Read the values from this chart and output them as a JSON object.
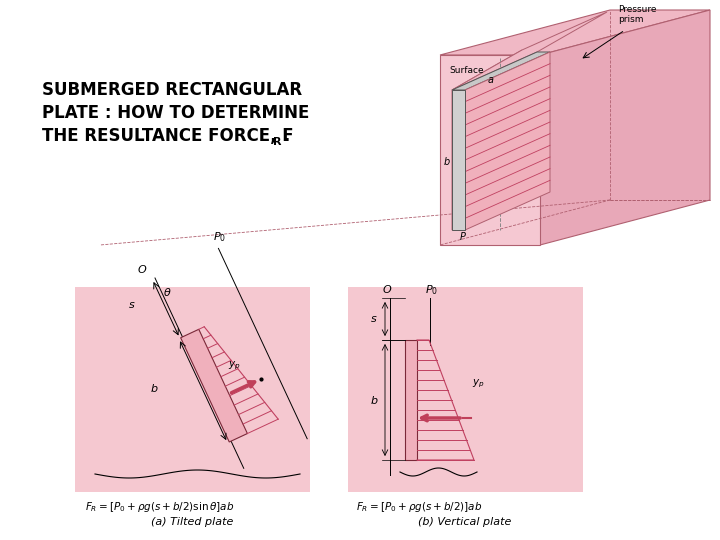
{
  "bg_color": "#ffffff",
  "pink_bg": "#f2c8d0",
  "pink_outer": "#f0b8c5",
  "pink_dark": "#c0405a",
  "pink_side": "#e8a0b0",
  "plate_fill": "#f0b0bc",
  "title_line1": "SUBMERGED RECTANGULAR",
  "title_line2": "PLATE : HOW TO DETERMINE",
  "title_line3": "THE RESULTANCE FORCE, F",
  "title_sub": "R",
  "formula_a": "$F_R = [P_0 + \\rho g(s + b/2) \\sin\\theta]ab$",
  "formula_b": "$F_R = [P_0 + \\rho g(s + b/2)]ab$",
  "caption_a": "(a) Tilted plate",
  "caption_b": "(b) Vertical plate",
  "edge_color": "#b06070",
  "line_color": "#c04060",
  "arrow_color": "#c0405a"
}
